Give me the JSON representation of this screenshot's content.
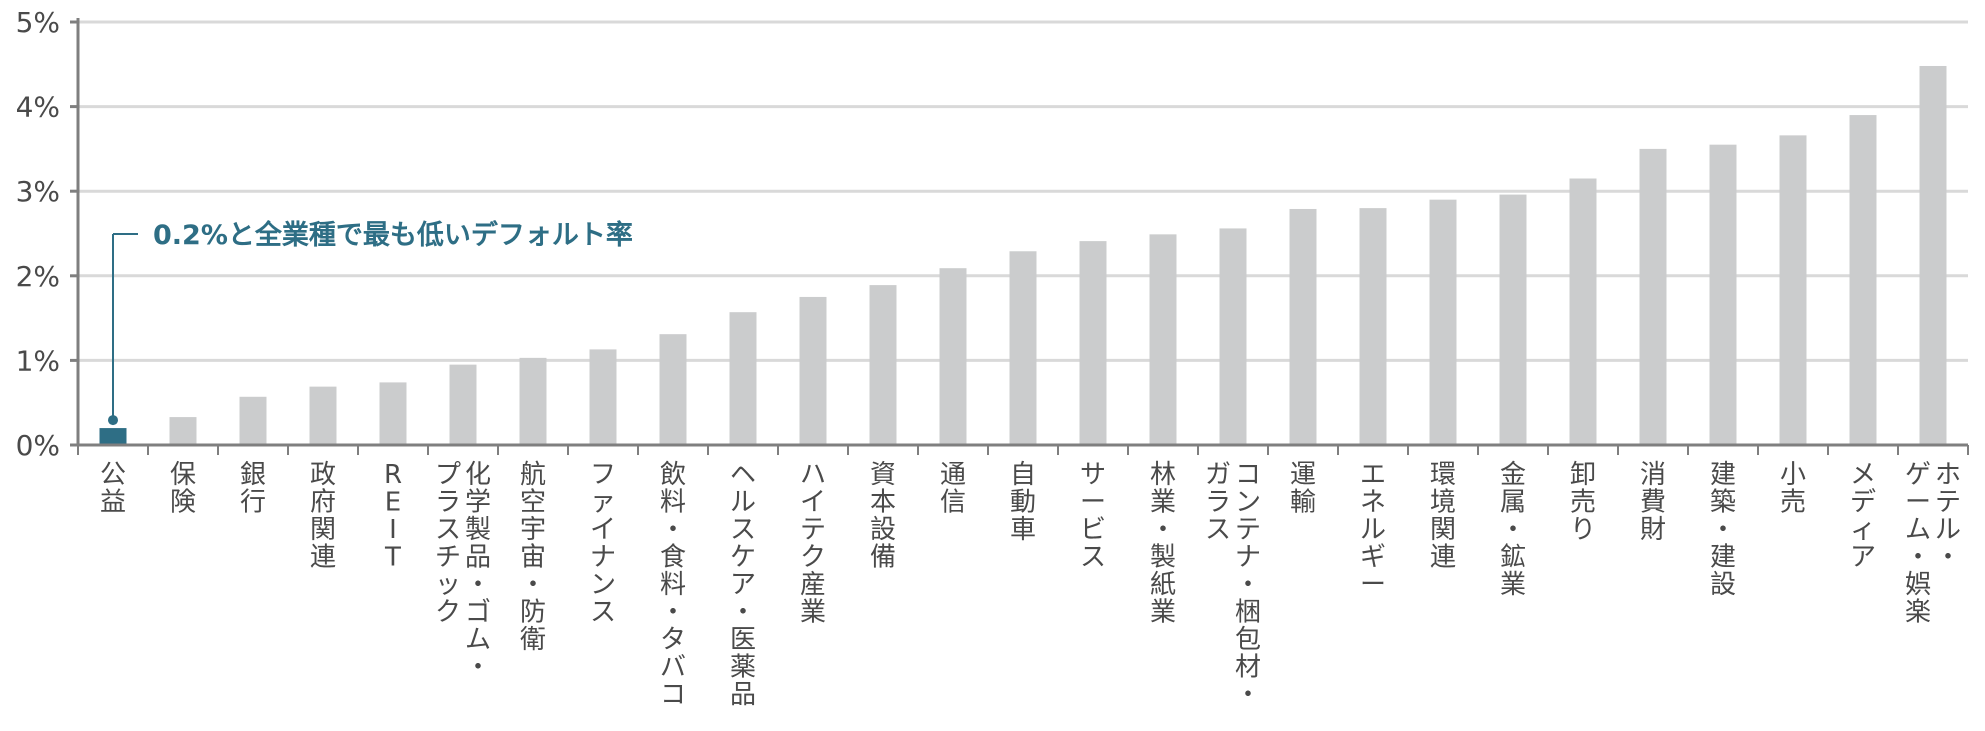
{
  "chart_data": {
    "type": "bar",
    "title": "",
    "xlabel": "",
    "ylabel": "",
    "ylim": [
      0,
      5
    ],
    "y_ticks": [
      0,
      1,
      2,
      3,
      4,
      5
    ],
    "y_tick_labels": [
      "0%",
      "1%",
      "2%",
      "3%",
      "4%",
      "5%"
    ],
    "grid": true,
    "categories": [
      "公益",
      "保険",
      "銀行",
      "政府関連",
      "REIT",
      "化学製品・ゴム・プラスチック",
      "航空宇宙・防衛",
      "ファイナンス",
      "飲料・食料・タバコ",
      "ヘルスケア・医薬品",
      "ハイテク産業",
      "資本設備",
      "通信",
      "自動車",
      "サービス",
      "林業・製紙業",
      "コンテナ・梱包材・ガラス",
      "運輸",
      "エネルギー",
      "環境関連",
      "金属・鉱業",
      "卸売り",
      "消費財",
      "建築・建設",
      "小売",
      "メディア",
      "ホテル・ゲーム・娯楽"
    ],
    "category_label_lines": [
      [
        "公益"
      ],
      [
        "保険"
      ],
      [
        "銀行"
      ],
      [
        "政府関連"
      ],
      [
        "REIT"
      ],
      [
        "化学製品・ゴム・",
        "プラスチック"
      ],
      [
        "航空宇宙・防衛"
      ],
      [
        "ファイナンス"
      ],
      [
        "飲料・食料・タバコ"
      ],
      [
        "ヘルスケア・医薬品"
      ],
      [
        "ハイテク産業"
      ],
      [
        "資本設備"
      ],
      [
        "通信"
      ],
      [
        "自動車"
      ],
      [
        "サービス"
      ],
      [
        "林業・製紙業"
      ],
      [
        "コンテナ・梱包材・",
        "ガラス"
      ],
      [
        "運輸"
      ],
      [
        "エネルギー"
      ],
      [
        "環境関連"
      ],
      [
        "金属・鉱業"
      ],
      [
        "卸売り"
      ],
      [
        "消費財"
      ],
      [
        "建築・建設"
      ],
      [
        "小売"
      ],
      [
        "メディア"
      ],
      [
        "ホテル・",
        "ゲーム・娯楽"
      ]
    ],
    "values": [
      0.2,
      0.33,
      0.57,
      0.69,
      0.74,
      0.95,
      1.03,
      1.13,
      1.31,
      1.57,
      1.75,
      1.89,
      2.09,
      2.29,
      2.41,
      2.49,
      2.56,
      2.79,
      2.8,
      2.9,
      2.96,
      3.15,
      3.5,
      3.55,
      3.66,
      3.9,
      4.48
    ],
    "highlight_index": 0,
    "colors": {
      "bar": "#cbcccd",
      "highlight": "#2e6e85",
      "grid": "#d9d9d9",
      "axis": "#7f7f7f",
      "text": "#4a4a4a"
    },
    "annotation": {
      "text": "0.2%と全業種で最も低いデフォルト率",
      "category_index": 0
    }
  }
}
